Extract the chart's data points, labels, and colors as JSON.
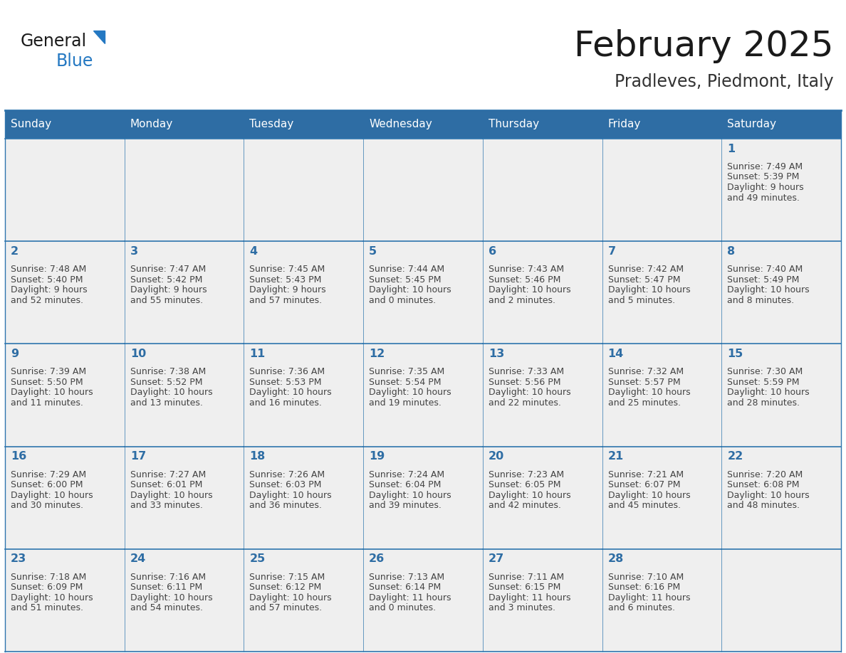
{
  "title": "February 2025",
  "subtitle": "Pradleves, Piedmont, Italy",
  "header_bg": "#2E6DA4",
  "header_text_color": "#FFFFFF",
  "cell_bg": "#EFEFEF",
  "day_number_color": "#2E6DA4",
  "cell_text_color": "#444444",
  "border_color": "#2E75AE",
  "days_of_week": [
    "Sunday",
    "Monday",
    "Tuesday",
    "Wednesday",
    "Thursday",
    "Friday",
    "Saturday"
  ],
  "weeks": [
    [
      {
        "day": null,
        "sunrise": null,
        "sunset": null,
        "daylight_line1": null,
        "daylight_line2": null
      },
      {
        "day": null,
        "sunrise": null,
        "sunset": null,
        "daylight_line1": null,
        "daylight_line2": null
      },
      {
        "day": null,
        "sunrise": null,
        "sunset": null,
        "daylight_line1": null,
        "daylight_line2": null
      },
      {
        "day": null,
        "sunrise": null,
        "sunset": null,
        "daylight_line1": null,
        "daylight_line2": null
      },
      {
        "day": null,
        "sunrise": null,
        "sunset": null,
        "daylight_line1": null,
        "daylight_line2": null
      },
      {
        "day": null,
        "sunrise": null,
        "sunset": null,
        "daylight_line1": null,
        "daylight_line2": null
      },
      {
        "day": 1,
        "sunrise": "7:49 AM",
        "sunset": "5:39 PM",
        "daylight_line1": "9 hours",
        "daylight_line2": "and 49 minutes."
      }
    ],
    [
      {
        "day": 2,
        "sunrise": "7:48 AM",
        "sunset": "5:40 PM",
        "daylight_line1": "9 hours",
        "daylight_line2": "and 52 minutes."
      },
      {
        "day": 3,
        "sunrise": "7:47 AM",
        "sunset": "5:42 PM",
        "daylight_line1": "9 hours",
        "daylight_line2": "and 55 minutes."
      },
      {
        "day": 4,
        "sunrise": "7:45 AM",
        "sunset": "5:43 PM",
        "daylight_line1": "9 hours",
        "daylight_line2": "and 57 minutes."
      },
      {
        "day": 5,
        "sunrise": "7:44 AM",
        "sunset": "5:45 PM",
        "daylight_line1": "10 hours",
        "daylight_line2": "and 0 minutes."
      },
      {
        "day": 6,
        "sunrise": "7:43 AM",
        "sunset": "5:46 PM",
        "daylight_line1": "10 hours",
        "daylight_line2": "and 2 minutes."
      },
      {
        "day": 7,
        "sunrise": "7:42 AM",
        "sunset": "5:47 PM",
        "daylight_line1": "10 hours",
        "daylight_line2": "and 5 minutes."
      },
      {
        "day": 8,
        "sunrise": "7:40 AM",
        "sunset": "5:49 PM",
        "daylight_line1": "10 hours",
        "daylight_line2": "and 8 minutes."
      }
    ],
    [
      {
        "day": 9,
        "sunrise": "7:39 AM",
        "sunset": "5:50 PM",
        "daylight_line1": "10 hours",
        "daylight_line2": "and 11 minutes."
      },
      {
        "day": 10,
        "sunrise": "7:38 AM",
        "sunset": "5:52 PM",
        "daylight_line1": "10 hours",
        "daylight_line2": "and 13 minutes."
      },
      {
        "day": 11,
        "sunrise": "7:36 AM",
        "sunset": "5:53 PM",
        "daylight_line1": "10 hours",
        "daylight_line2": "and 16 minutes."
      },
      {
        "day": 12,
        "sunrise": "7:35 AM",
        "sunset": "5:54 PM",
        "daylight_line1": "10 hours",
        "daylight_line2": "and 19 minutes."
      },
      {
        "day": 13,
        "sunrise": "7:33 AM",
        "sunset": "5:56 PM",
        "daylight_line1": "10 hours",
        "daylight_line2": "and 22 minutes."
      },
      {
        "day": 14,
        "sunrise": "7:32 AM",
        "sunset": "5:57 PM",
        "daylight_line1": "10 hours",
        "daylight_line2": "and 25 minutes."
      },
      {
        "day": 15,
        "sunrise": "7:30 AM",
        "sunset": "5:59 PM",
        "daylight_line1": "10 hours",
        "daylight_line2": "and 28 minutes."
      }
    ],
    [
      {
        "day": 16,
        "sunrise": "7:29 AM",
        "sunset": "6:00 PM",
        "daylight_line1": "10 hours",
        "daylight_line2": "and 30 minutes."
      },
      {
        "day": 17,
        "sunrise": "7:27 AM",
        "sunset": "6:01 PM",
        "daylight_line1": "10 hours",
        "daylight_line2": "and 33 minutes."
      },
      {
        "day": 18,
        "sunrise": "7:26 AM",
        "sunset": "6:03 PM",
        "daylight_line1": "10 hours",
        "daylight_line2": "and 36 minutes."
      },
      {
        "day": 19,
        "sunrise": "7:24 AM",
        "sunset": "6:04 PM",
        "daylight_line1": "10 hours",
        "daylight_line2": "and 39 minutes."
      },
      {
        "day": 20,
        "sunrise": "7:23 AM",
        "sunset": "6:05 PM",
        "daylight_line1": "10 hours",
        "daylight_line2": "and 42 minutes."
      },
      {
        "day": 21,
        "sunrise": "7:21 AM",
        "sunset": "6:07 PM",
        "daylight_line1": "10 hours",
        "daylight_line2": "and 45 minutes."
      },
      {
        "day": 22,
        "sunrise": "7:20 AM",
        "sunset": "6:08 PM",
        "daylight_line1": "10 hours",
        "daylight_line2": "and 48 minutes."
      }
    ],
    [
      {
        "day": 23,
        "sunrise": "7:18 AM",
        "sunset": "6:09 PM",
        "daylight_line1": "10 hours",
        "daylight_line2": "and 51 minutes."
      },
      {
        "day": 24,
        "sunrise": "7:16 AM",
        "sunset": "6:11 PM",
        "daylight_line1": "10 hours",
        "daylight_line2": "and 54 minutes."
      },
      {
        "day": 25,
        "sunrise": "7:15 AM",
        "sunset": "6:12 PM",
        "daylight_line1": "10 hours",
        "daylight_line2": "and 57 minutes."
      },
      {
        "day": 26,
        "sunrise": "7:13 AM",
        "sunset": "6:14 PM",
        "daylight_line1": "11 hours",
        "daylight_line2": "and 0 minutes."
      },
      {
        "day": 27,
        "sunrise": "7:11 AM",
        "sunset": "6:15 PM",
        "daylight_line1": "11 hours",
        "daylight_line2": "and 3 minutes."
      },
      {
        "day": 28,
        "sunrise": "7:10 AM",
        "sunset": "6:16 PM",
        "daylight_line1": "11 hours",
        "daylight_line2": "and 6 minutes."
      },
      {
        "day": null,
        "sunrise": null,
        "sunset": null,
        "daylight_line1": null,
        "daylight_line2": null
      }
    ]
  ],
  "logo_color_general": "#1a1a1a",
  "logo_color_blue": "#2478C2",
  "logo_triangle_color": "#2478C2"
}
